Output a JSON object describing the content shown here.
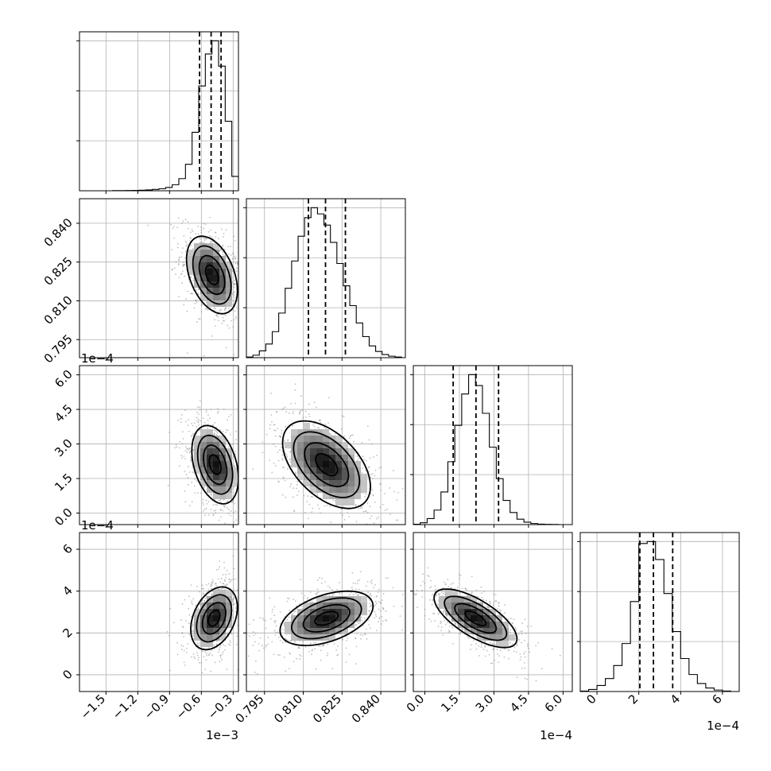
{
  "chart_data": {
    "type": "corner",
    "grid": true,
    "parameters": [
      {
        "range": [
          -0.00175,
          -0.00025
        ],
        "ticks": [
          -0.0015,
          -0.0012,
          -0.0009,
          -0.0006,
          -0.0003
        ],
        "tick_labels": [
          "−1.5",
          "−1.2",
          "−0.9",
          "−0.6",
          "−0.3"
        ],
        "offset_label": "1e−3",
        "quantiles": [
          -0.000617,
          -0.000508,
          -0.000414
        ],
        "hist_edges": [
          -0.00175,
          -0.0016875,
          -0.001625,
          -0.0015625,
          -0.0015,
          -0.0014375,
          -0.001375,
          -0.0013125,
          -0.00125,
          -0.0011875,
          -0.001125,
          -0.0010625,
          -0.001,
          -0.0009375,
          -0.000875,
          -0.0008125,
          -0.00075,
          -0.0006875,
          -0.000625,
          -0.0005625,
          -0.0005,
          -0.0004375,
          -0.000375,
          -0.0003125,
          -0.00025
        ],
        "hist_counts": [
          0,
          0,
          0,
          0,
          0,
          1,
          1,
          2,
          3,
          5,
          8,
          12,
          18,
          30,
          55,
          110,
          240,
          530,
          950,
          1240,
          1360,
          1130,
          630,
          130
        ]
      },
      {
        "range": [
          0.788,
          0.8495
        ],
        "ticks": [
          0.795,
          0.81,
          0.825,
          0.84
        ],
        "tick_labels": [
          "0.795",
          "0.810",
          "0.825",
          "0.840"
        ],
        "offset_label": "",
        "quantiles": [
          0.812,
          0.8186,
          0.8263
        ],
        "hist_edges": [
          0.788,
          0.7905,
          0.793,
          0.7955,
          0.798,
          0.8005,
          0.803,
          0.8055,
          0.808,
          0.8105,
          0.813,
          0.8155,
          0.818,
          0.8205,
          0.823,
          0.8255,
          0.828,
          0.8305,
          0.833,
          0.8355,
          0.838,
          0.8405,
          0.843,
          0.8455,
          0.848
        ],
        "hist_counts": [
          5,
          20,
          55,
          110,
          210,
          360,
          560,
          780,
          980,
          1130,
          1210,
          1160,
          1070,
          930,
          760,
          580,
          420,
          280,
          170,
          95,
          50,
          25,
          12,
          5
        ]
      },
      {
        "range": [
          -5e-05,
          0.00064
        ],
        "ticks": [
          0.0,
          0.00015,
          0.0003,
          0.00045,
          0.0006
        ],
        "tick_labels": [
          "0.0",
          "1.5",
          "3.0",
          "4.5",
          "6.0"
        ],
        "offset_label": "1e−4",
        "quantiles": [
          0.000123,
          0.000222,
          0.00032
        ],
        "hist_edges": [
          -5e-05,
          -2e-05,
          1e-05,
          4e-05,
          7e-05,
          0.0001,
          0.00013,
          0.00016,
          0.00019,
          0.00022,
          0.00025,
          0.00028,
          0.00031,
          0.00034,
          0.00037,
          0.0004,
          0.00043,
          0.00046,
          0.00049,
          0.00052,
          0.00055,
          0.00058,
          0.00061
        ],
        "hist_counts": [
          3,
          15,
          50,
          120,
          270,
          520,
          820,
          1080,
          1240,
          1150,
          920,
          640,
          380,
          200,
          100,
          45,
          20,
          9,
          4,
          2,
          1,
          0
        ]
      },
      {
        "range": [
          -8e-05,
          0.00068
        ],
        "ticks": [
          0,
          0.0002,
          0.0004,
          0.0006
        ],
        "tick_labels": [
          "0",
          "2",
          "4",
          "6"
        ],
        "offset_label": "1e−4",
        "quantiles": [
          0.000205,
          0.00027,
          0.000362
        ],
        "hist_edges": [
          -8e-05,
          -4e-05,
          0.0,
          4e-05,
          8e-05,
          0.00012,
          0.00016,
          0.0002,
          0.00024,
          0.00028,
          0.00032,
          0.00036,
          0.0004,
          0.00044,
          0.00048,
          0.00052,
          0.00056,
          0.0006,
          0.00064
        ],
        "hist_counts": [
          5,
          20,
          60,
          130,
          260,
          480,
          900,
          1480,
          1500,
          1320,
          980,
          600,
          330,
          170,
          80,
          35,
          15,
          5
        ]
      }
    ],
    "pairs": [
      {
        "row": 1,
        "col": 0,
        "mean": [
          -0.0005,
          0.82
        ],
        "std": [
          0.00012,
          0.0075
        ],
        "corr": -0.4
      },
      {
        "row": 2,
        "col": 0,
        "mean": [
          -0.00047,
          0.00021
        ],
        "std": [
          0.00011,
          8.5e-05
        ],
        "corr": -0.35
      },
      {
        "row": 2,
        "col": 1,
        "mean": [
          0.819,
          0.00021
        ],
        "std": [
          0.0085,
          9.5e-05
        ],
        "corr": -0.5
      },
      {
        "row": 3,
        "col": 0,
        "mean": [
          -0.00048,
          0.00027
        ],
        "std": [
          0.00011,
          7.5e-05
        ],
        "corr": 0.35
      },
      {
        "row": 3,
        "col": 1,
        "mean": [
          0.819,
          0.00027
        ],
        "std": [
          0.009,
          6.5e-05
        ],
        "corr": 0.45
      },
      {
        "row": 3,
        "col": 2,
        "mean": [
          0.00022,
          0.00027
        ],
        "std": [
          9e-05,
          7e-05
        ],
        "corr": -0.7
      }
    ]
  }
}
